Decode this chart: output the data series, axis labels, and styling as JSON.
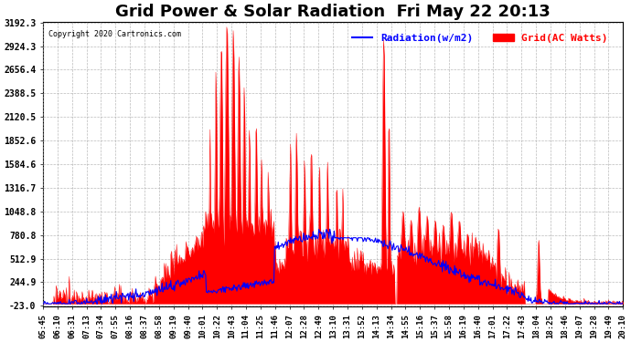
{
  "title": "Grid Power & Solar Radiation  Fri May 22 20:13",
  "copyright": "Copyright 2020 Cartronics.com",
  "legend_radiation": "Radiation(w/m2)",
  "legend_grid": "Grid(AC Watts)",
  "yticks": [
    3192.3,
    2924.3,
    2656.4,
    2388.5,
    2120.5,
    1852.6,
    1584.6,
    1316.7,
    1048.8,
    780.8,
    512.9,
    244.9,
    -23.0
  ],
  "ymin": -23.0,
  "ymax": 3192.3,
  "xtick_labels": [
    "05:45",
    "06:10",
    "06:31",
    "07:13",
    "07:34",
    "07:55",
    "08:16",
    "08:37",
    "08:58",
    "09:19",
    "09:40",
    "10:01",
    "10:22",
    "10:43",
    "11:04",
    "11:25",
    "11:46",
    "12:07",
    "12:28",
    "12:49",
    "13:10",
    "13:31",
    "13:52",
    "14:13",
    "14:34",
    "14:55",
    "15:16",
    "15:37",
    "15:58",
    "16:19",
    "16:40",
    "17:01",
    "17:22",
    "17:43",
    "18:04",
    "18:25",
    "18:46",
    "19:07",
    "19:28",
    "19:49",
    "20:10"
  ],
  "color_red": "#FF0000",
  "color_blue": "#0000FF",
  "color_bg": "#FFFFFF",
  "grid_color": "#AAAAAA",
  "title_fontsize": 13,
  "label_fontsize": 8,
  "tick_fontsize": 7
}
